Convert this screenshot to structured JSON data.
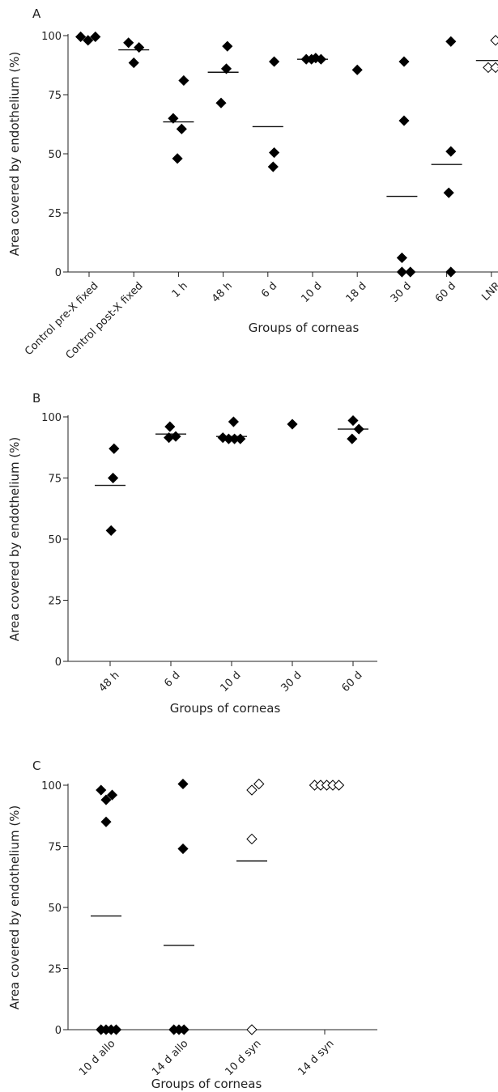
{
  "chart_data": [
    {
      "panel": "A",
      "type": "scatter",
      "ylabel": "Area covered by endothelium (%)",
      "xlabel": "Groups of corneas",
      "ylim": [
        0,
        100
      ],
      "yticks": [
        0,
        25,
        50,
        75,
        100
      ],
      "categories": [
        "Control pre-X fixed",
        "Control post-X fixed",
        "1 h",
        "48 h",
        "6 d",
        "10 d",
        "18 d",
        "30 d",
        "60 d",
        "LNR"
      ],
      "groups": [
        {
          "category": "Control pre-X fixed",
          "marker": "filled",
          "median": null,
          "points": [
            [
              -0.4,
              99.5
            ],
            [
              -0.05,
              98
            ],
            [
              0.3,
              99.5
            ]
          ]
        },
        {
          "category": "Control post-X fixed",
          "marker": "filled",
          "median": 94,
          "points": [
            [
              -0.25,
              97
            ],
            [
              0.25,
              95
            ],
            [
              0,
              88.5
            ]
          ]
        },
        {
          "category": "1 h",
          "marker": "filled",
          "median": 63.5,
          "points": [
            [
              0.25,
              81
            ],
            [
              -0.25,
              65
            ],
            [
              0.15,
              60.5
            ],
            [
              -0.05,
              48
            ]
          ]
        },
        {
          "category": "48 h",
          "marker": "filled",
          "median": 84.5,
          "points": [
            [
              0.2,
              95.5
            ],
            [
              0.15,
              86
            ],
            [
              -0.1,
              71.5
            ]
          ]
        },
        {
          "category": "6 d",
          "marker": "filled",
          "median": 61.5,
          "points": [
            [
              0.3,
              89
            ],
            [
              0.3,
              50.5
            ],
            [
              0.25,
              44.5
            ]
          ]
        },
        {
          "category": "10 d",
          "marker": "filled",
          "median": 90,
          "points": [
            [
              -0.3,
              90
            ],
            [
              -0.05,
              90
            ],
            [
              0.15,
              90.5
            ],
            [
              0.4,
              90
            ]
          ]
        },
        {
          "category": "18 d",
          "marker": "filled",
          "median": null,
          "points": [
            [
              0,
              85.5
            ]
          ]
        },
        {
          "category": "30 d",
          "marker": "filled",
          "median": 32,
          "points": [
            [
              0.1,
              89
            ],
            [
              0.1,
              64
            ],
            [
              0,
              6
            ],
            [
              0,
              0
            ],
            [
              0.4,
              0
            ]
          ]
        },
        {
          "category": "60 d",
          "marker": "filled",
          "median": 45.5,
          "points": [
            [
              0.2,
              97.5
            ],
            [
              0.2,
              51
            ],
            [
              0.1,
              33.5
            ],
            [
              0.2,
              0
            ]
          ]
        },
        {
          "category": "LNR",
          "marker": "open",
          "median": 89.5,
          "points": [
            [
              0.2,
              98
            ],
            [
              -0.15,
              86.5
            ],
            [
              0.2,
              86.5
            ],
            [
              0.55,
              86.5
            ]
          ]
        }
      ]
    },
    {
      "panel": "B",
      "type": "scatter",
      "ylabel": "Area covered by endothelium (%)",
      "xlabel": "Groups of corneas",
      "ylim": [
        0,
        100
      ],
      "yticks": [
        0,
        25,
        50,
        75,
        100
      ],
      "categories": [
        "48 h",
        "6 d",
        "10 d",
        "30 d",
        "60 d"
      ],
      "groups": [
        {
          "category": "48 h",
          "marker": "filled",
          "median": 72,
          "points": [
            [
              0.2,
              87
            ],
            [
              0.15,
              75
            ],
            [
              0.05,
              53.5
            ]
          ]
        },
        {
          "category": "6 d",
          "marker": "filled",
          "median": 93,
          "points": [
            [
              -0.05,
              96
            ],
            [
              -0.1,
              91.5
            ],
            [
              0.25,
              92
            ]
          ]
        },
        {
          "category": "10 d",
          "marker": "filled",
          "median": 92,
          "points": [
            [
              0.1,
              98
            ],
            [
              -0.45,
              91.5
            ],
            [
              -0.15,
              91
            ],
            [
              0.15,
              91
            ],
            [
              0.45,
              91
            ]
          ]
        },
        {
          "category": "30 d",
          "marker": "filled",
          "median": null,
          "points": [
            [
              0,
              97
            ]
          ]
        },
        {
          "category": "60 d",
          "marker": "filled",
          "median": 95,
          "points": [
            [
              0,
              98.5
            ],
            [
              0.3,
              95
            ],
            [
              -0.05,
              91
            ]
          ]
        }
      ]
    },
    {
      "panel": "C",
      "type": "scatter",
      "ylabel": "Area covered by endothelium (%)",
      "xlabel": "Groups of corneas",
      "ylim": [
        0,
        100
      ],
      "yticks": [
        0,
        25,
        50,
        75,
        100
      ],
      "categories": [
        "10 d allo",
        "14 d allo",
        "10 d syn",
        "14 d syn"
      ],
      "groups": [
        {
          "category": "10 d allo",
          "marker": "filled",
          "median": 46.5,
          "points": [
            [
              -0.25,
              98
            ],
            [
              0,
              94
            ],
            [
              0.3,
              96
            ],
            [
              0,
              85
            ],
            [
              -0.25,
              0
            ],
            [
              0,
              0
            ],
            [
              0.25,
              0
            ],
            [
              0.5,
              0
            ]
          ]
        },
        {
          "category": "14 d allo",
          "marker": "filled",
          "median": 34.5,
          "points": [
            [
              0.2,
              100.5
            ],
            [
              0.2,
              74
            ],
            [
              -0.25,
              0
            ],
            [
              0,
              0
            ],
            [
              0.25,
              0
            ]
          ]
        },
        {
          "category": "10 d syn",
          "marker": "open",
          "median": 69,
          "points": [
            [
              0,
              98
            ],
            [
              0.35,
              100.5
            ],
            [
              0,
              78
            ],
            [
              0,
              0
            ]
          ]
        },
        {
          "category": "14 d syn",
          "marker": "open",
          "median": null,
          "points": [
            [
              -0.5,
              100
            ],
            [
              -0.2,
              100
            ],
            [
              0.1,
              100
            ],
            [
              0.4,
              100
            ],
            [
              0.7,
              100
            ]
          ]
        }
      ]
    }
  ]
}
